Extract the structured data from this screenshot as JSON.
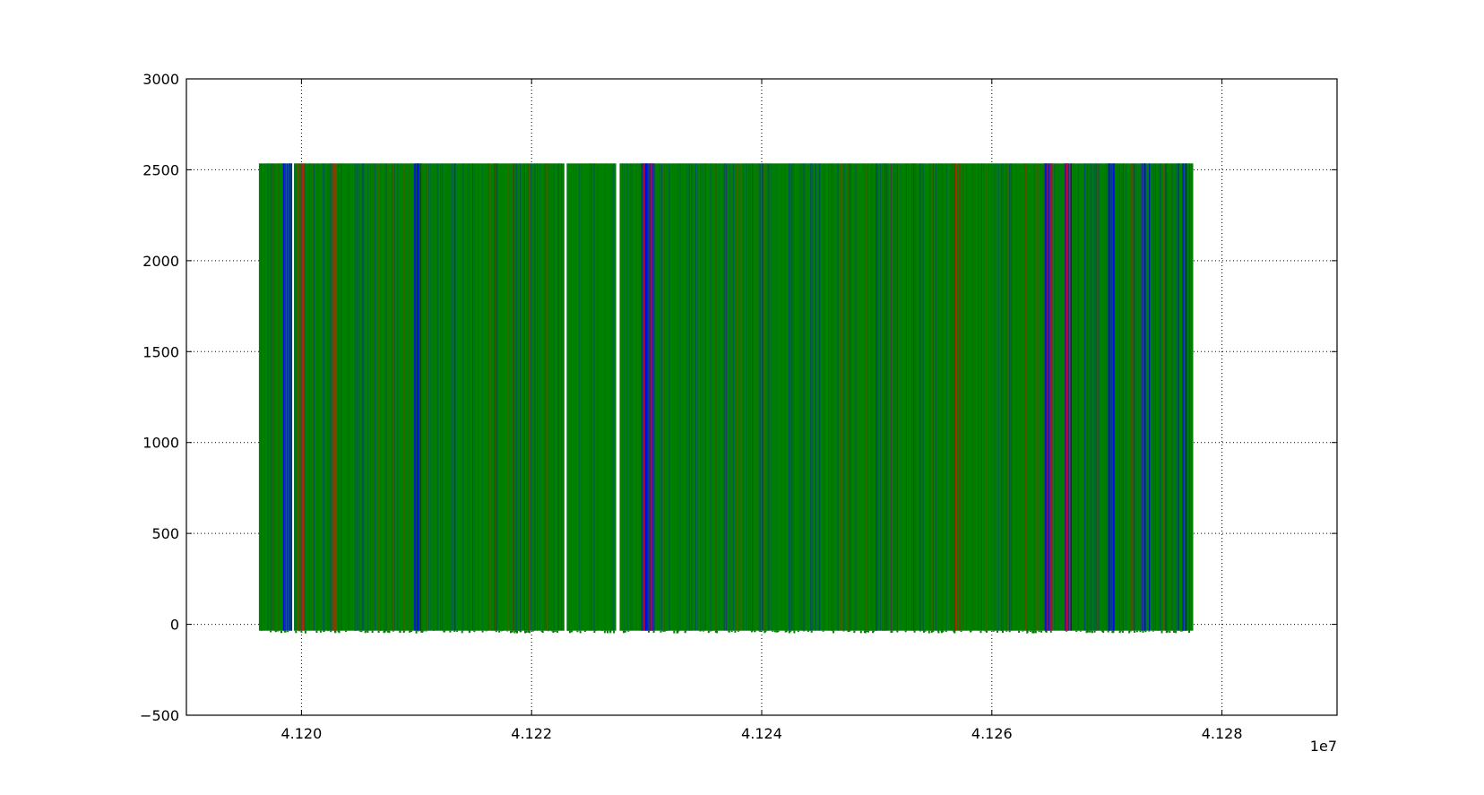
{
  "chart_data": {
    "type": "scatter",
    "title": "",
    "xlabel": "",
    "ylabel": "",
    "xlim": [
      41190000,
      41290000
    ],
    "ylim": [
      -500,
      3000
    ],
    "x_offset_label": "1e7",
    "x_ticks": [
      41200000,
      41220000,
      41240000,
      41260000,
      41280000
    ],
    "x_tick_labels": [
      "4.120",
      "4.122",
      "4.124",
      "4.126",
      "4.128"
    ],
    "y_ticks": [
      -500,
      0,
      500,
      1000,
      1500,
      2000,
      2500,
      3000
    ],
    "y_tick_labels": [
      "−500",
      "0",
      "500",
      "1000",
      "1500",
      "2000",
      "2500",
      "3000"
    ],
    "grid": true,
    "grid_style": "dotted",
    "x_range_of_points": [
      41196300,
      41277500
    ],
    "y_range_of_points": [
      -35,
      2535
    ],
    "gaps_in_x": [
      [
        41199200,
        41199350
      ],
      [
        41222850,
        41223050
      ],
      [
        41227350,
        41227650
      ]
    ],
    "series": [
      {
        "color": "#008000",
        "x_range": [
          41196300,
          41277500
        ],
        "y_range": [
          -35,
          2535
        ]
      },
      {
        "color": "#0000ff",
        "x_range": [
          41196300,
          41277500
        ],
        "y_range": [
          -35,
          2535
        ],
        "dense_near_x": [
          41198800,
          41210000,
          41229800,
          41230200,
          41265000,
          41266500,
          41270300,
          41273300,
          41276500
        ]
      },
      {
        "color": "#ff0000",
        "x_range": [
          41196300,
          41277500
        ],
        "y_range": [
          -35,
          2535
        ],
        "dense_near_x": [
          41200000,
          41202800,
          41230000,
          41256900,
          41264800,
          41266300
        ]
      }
    ]
  }
}
